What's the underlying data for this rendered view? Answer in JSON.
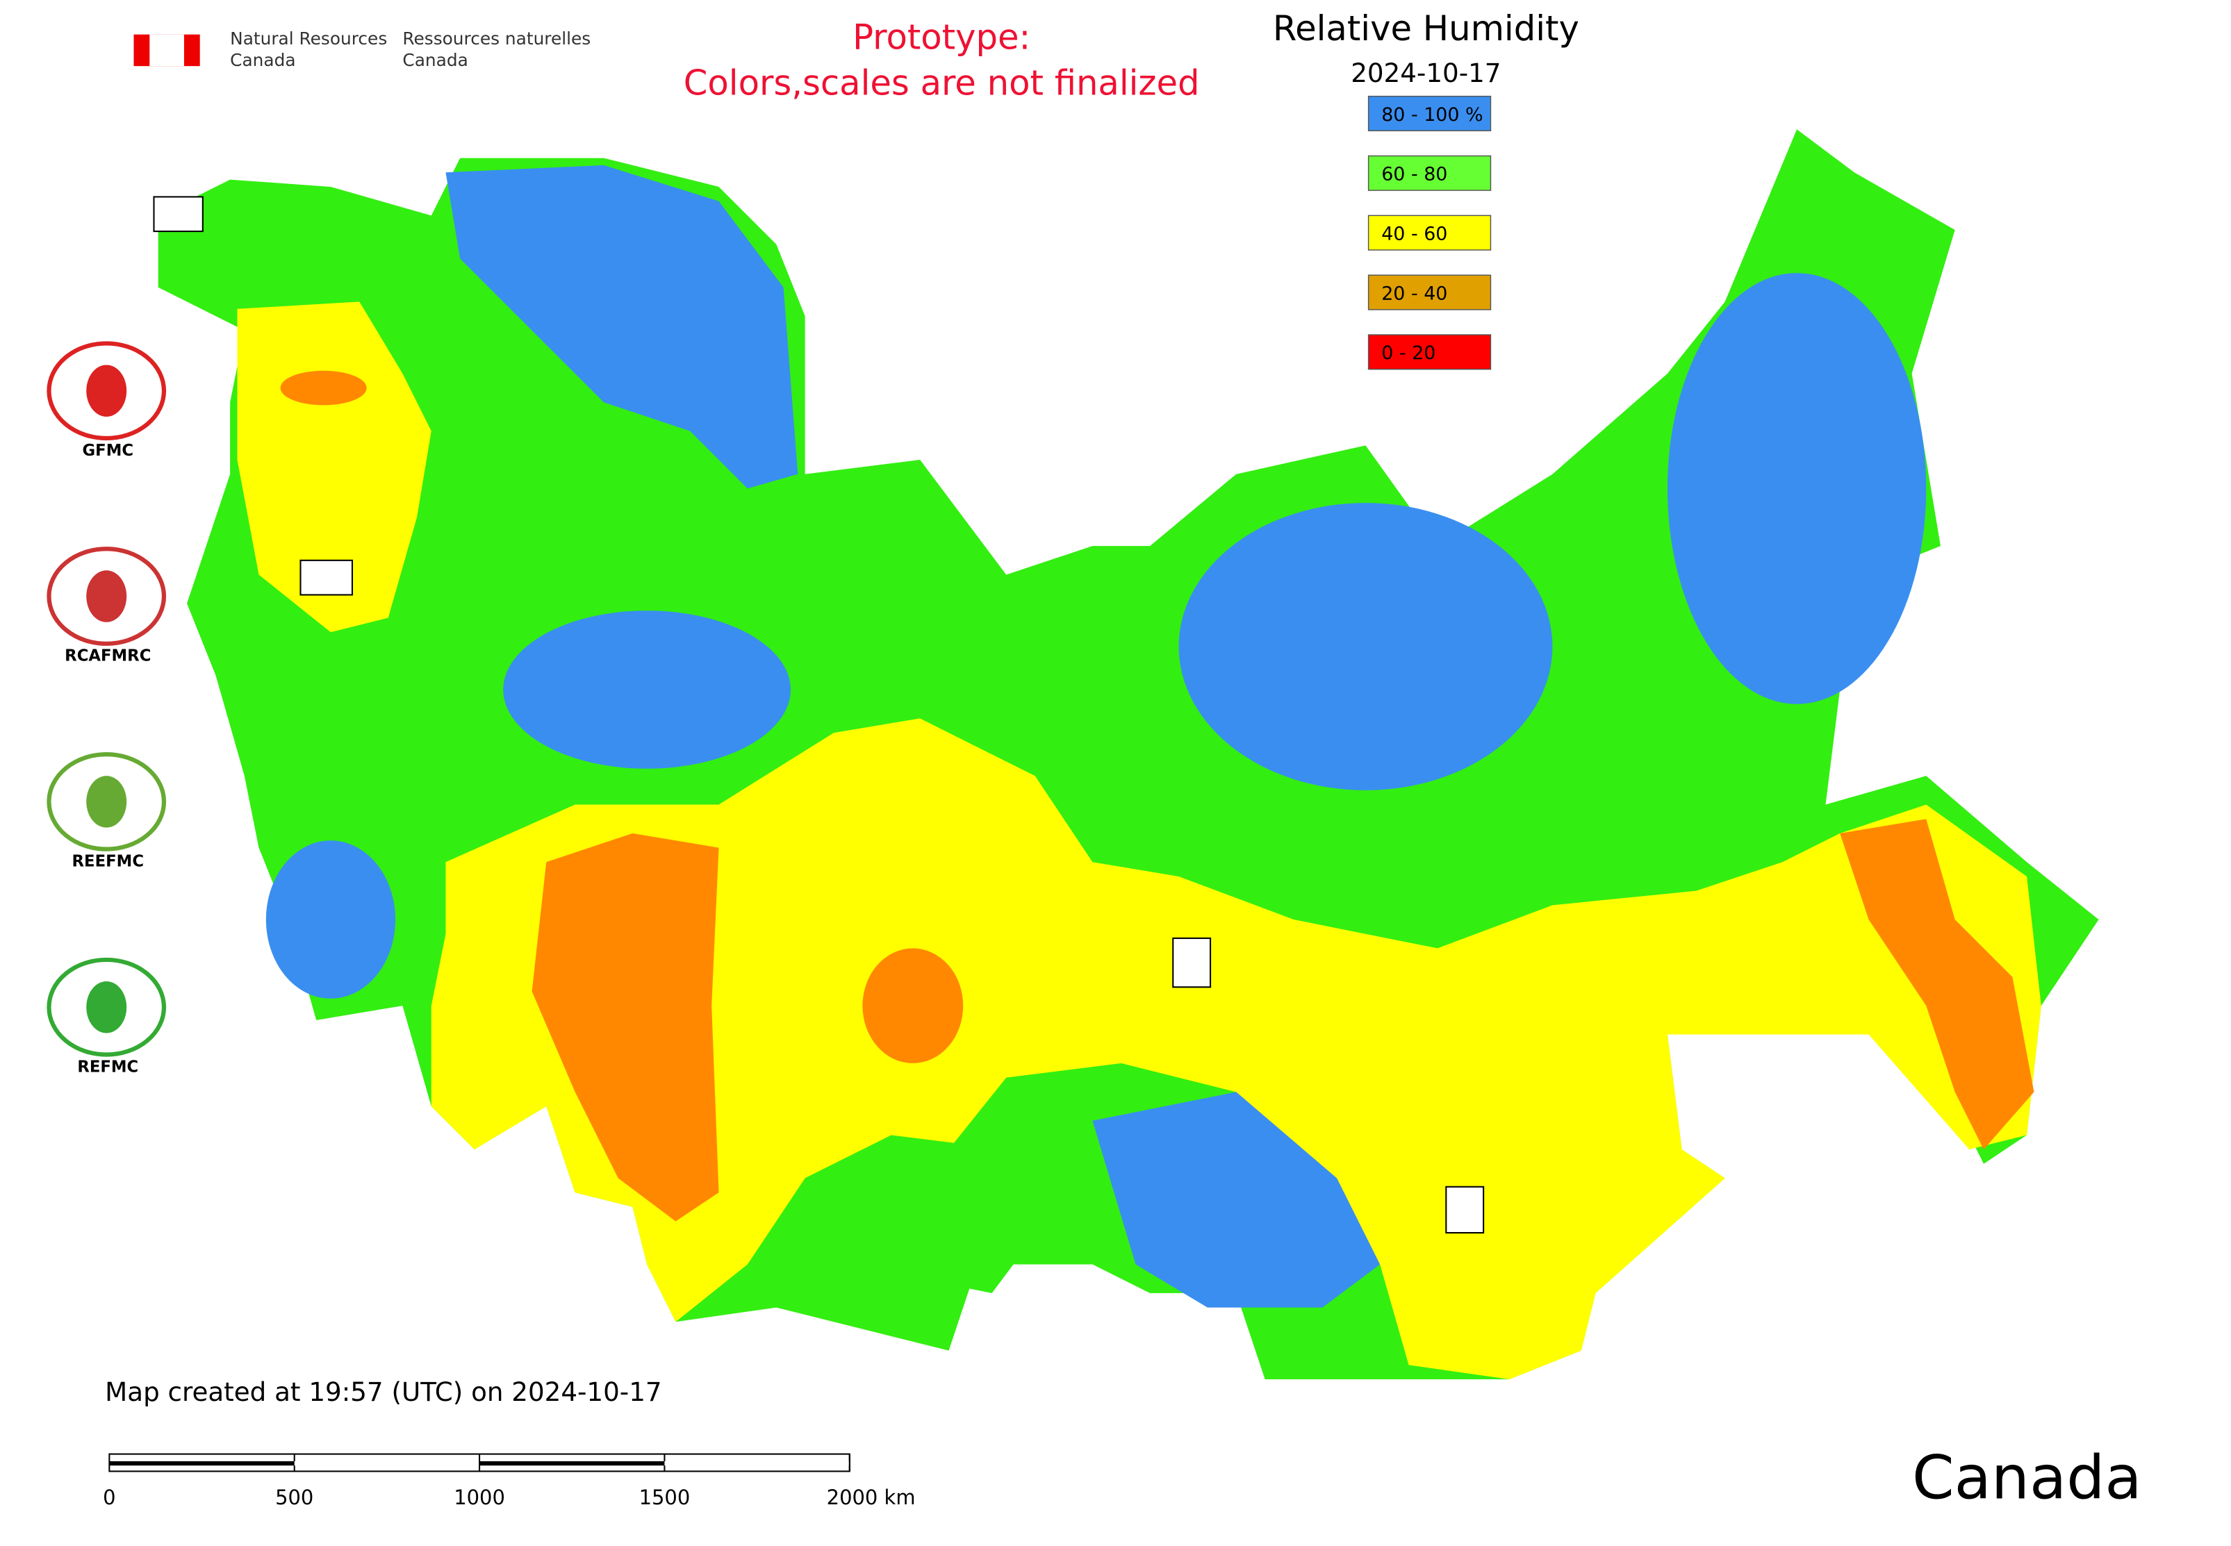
{
  "header": {
    "agency_en": [
      "Natural Resources",
      "Canada"
    ],
    "agency_fr": [
      "Ressources naturelles",
      "Canada"
    ],
    "notice": [
      "Prototype:",
      "Colors,scales are not finalized"
    ]
  },
  "legend": {
    "title": "Relative Humidity",
    "date": "2024-10-17",
    "entries": [
      {
        "label": "80 - 100 %",
        "color": "#3a8ef0"
      },
      {
        "label": "60 - 80",
        "color": "#66ff33"
      },
      {
        "label": "40 - 60",
        "color": "#ffff00"
      },
      {
        "label": "20 - 40",
        "color": "#e0a000"
      },
      {
        "label": "0 - 20",
        "color": "#ff0000"
      }
    ]
  },
  "logos": [
    "GFMC",
    "RCAFMRC",
    "REEFMC",
    "REFMC"
  ],
  "footer": {
    "created": "Map created at 19:57 (UTC) on 2024-10-17",
    "scale_labels": [
      "0",
      "500",
      "1000",
      "1500",
      "2000 km"
    ],
    "wordmark": "Canada"
  }
}
